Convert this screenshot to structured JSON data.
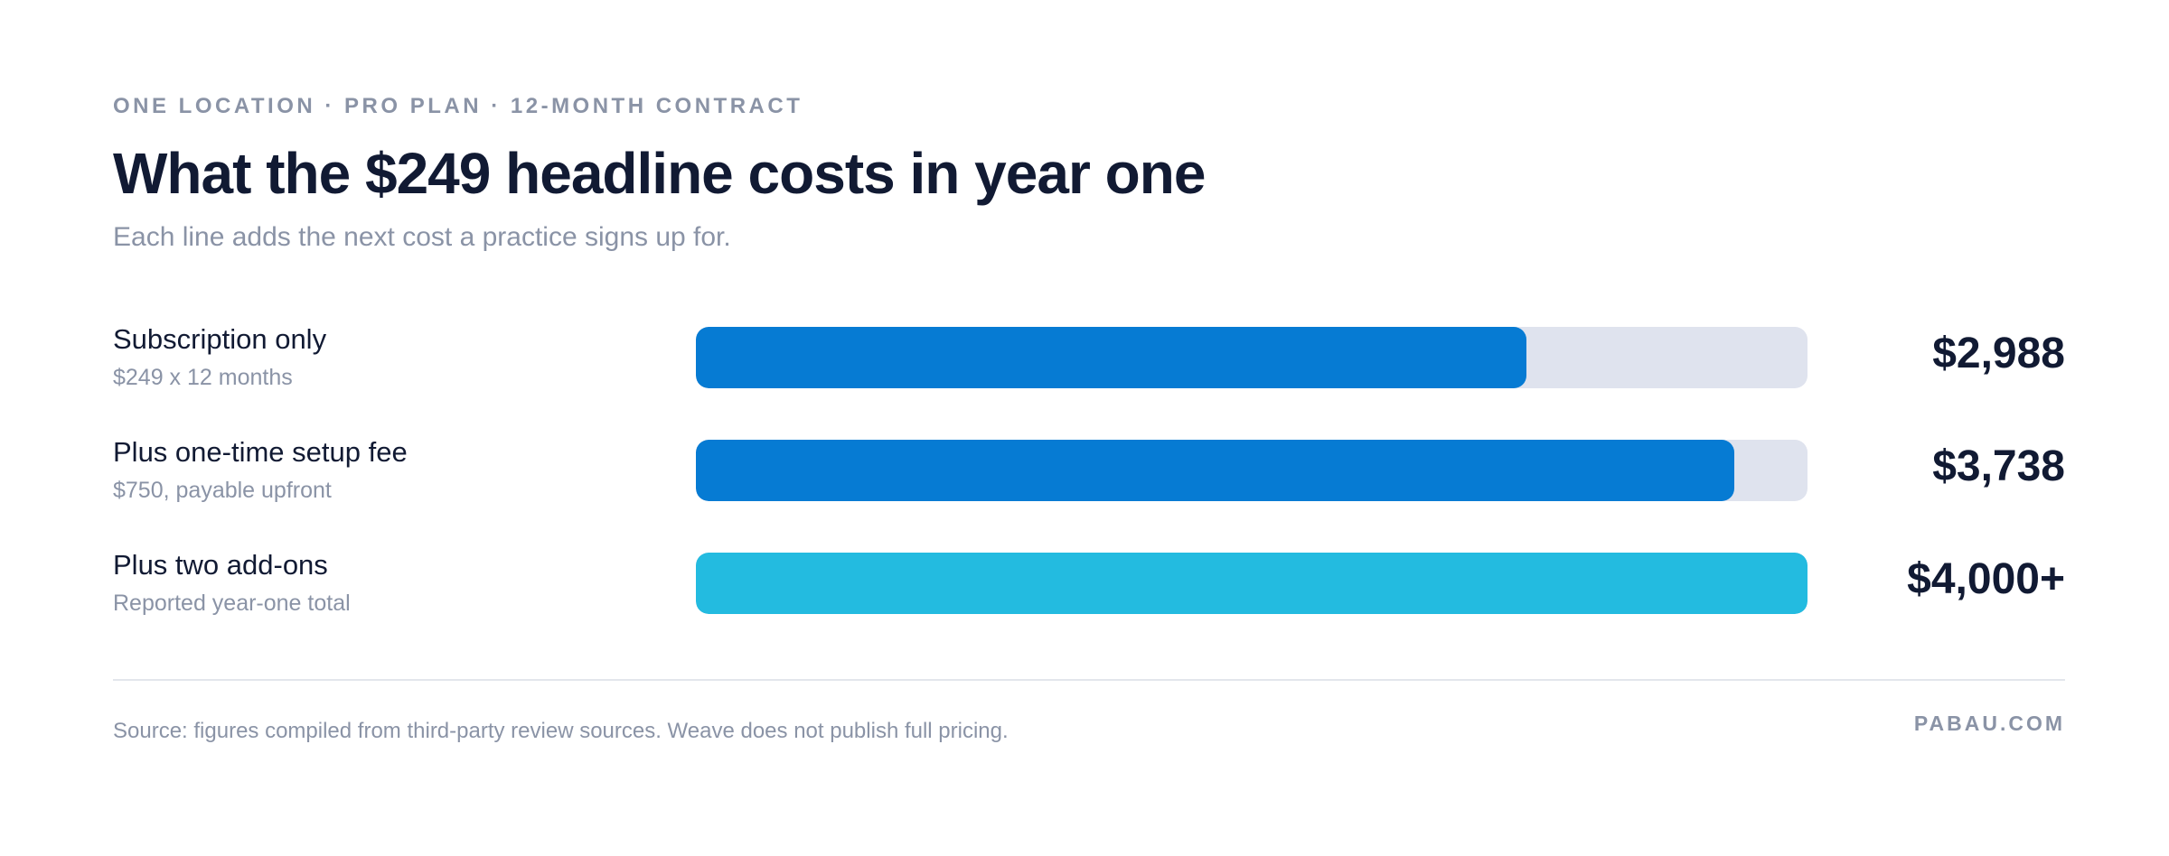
{
  "header": {
    "eyebrow": "ONE LOCATION · PRO PLAN · 12-MONTH CONTRACT",
    "title": "What the $249 headline costs in year one",
    "subtitle": "Each line adds the next cost a practice signs up for."
  },
  "rows": [
    {
      "label": "Subscription only",
      "sublabel": "$249 x 12 months",
      "value_text": "$2,988",
      "color": "#067bd3"
    },
    {
      "label": "Plus one-time setup fee",
      "sublabel": "$750, payable upfront",
      "value_text": "$3,738",
      "color": "#067bd3"
    },
    {
      "label": "Plus two add-ons",
      "sublabel": "Reported year-one total",
      "value_text": "$4,000+",
      "color": "#23bbe0"
    }
  ],
  "footer": {
    "source": "Source: figures compiled from third-party review sources. Weave does not publish full pricing.",
    "brand": "PABAU.COM"
  },
  "colors": {
    "primary_bar": "#067bd3",
    "highlight_bar": "#23bbe0",
    "track": "#dfe3ee",
    "text_dark": "#111a33",
    "text_muted": "#8a93a6"
  },
  "chart_data": {
    "type": "bar",
    "orientation": "horizontal",
    "title": "What the $249 headline costs in year one",
    "subtitle": "Each line adds the next cost a practice signs up for.",
    "categories": [
      "Subscription only",
      "Plus one-time setup fee",
      "Plus two add-ons"
    ],
    "values": [
      2988,
      3738,
      4000
    ],
    "value_labels": [
      "$2,988",
      "$3,738",
      "$4,000+"
    ],
    "xlim": [
      0,
      4000
    ],
    "grid": false,
    "legend": "none"
  }
}
